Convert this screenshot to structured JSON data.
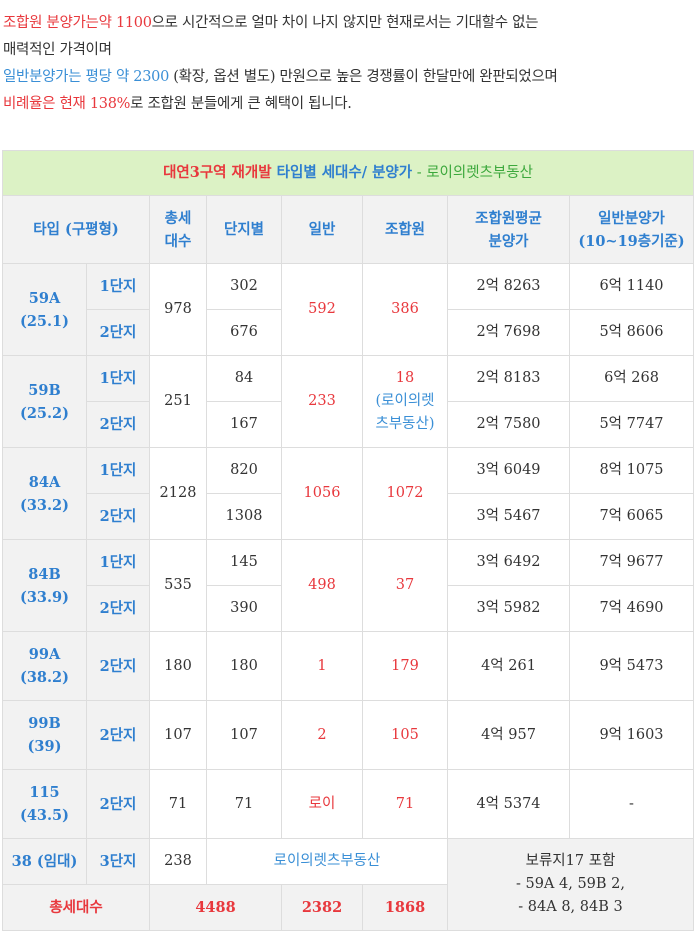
{
  "intro": {
    "line1_red": "조합원 분양가는약 1100",
    "line1_rest": "으로 시간적으로 얼마 차이 나지 않지만 현재로서는 기대할수 없는",
    "line2": "매력적인 가격이며",
    "line3_blue": "일반분양가는 평당 약 2300",
    "line3_rest": " (확장, 옵션 별도) 만원으로 높은 경쟁률이 한달만에 완판되었으며",
    "line4_red": "비례율은 현재 138%",
    "line4_rest": "로 조합원 분들에게 큰 혜택이 됩니다."
  },
  "table": {
    "title_red": "대연3구역 재개발 ",
    "title_blue": "타입별 세대수/ 분양가",
    "title_green": " - 로이의렛츠부동산",
    "headers": {
      "type": "타입 (구평형)",
      "total_units_1": "총세",
      "total_units_2": "대수",
      "by_complex": "단지별",
      "general": "일반",
      "member": "조합원",
      "member_avg_1": "조합원평균",
      "member_avg_2": "분양가",
      "general_price_1": "일반분양가",
      "general_price_2": "(10~19층기준)"
    },
    "rows": [
      {
        "type": "59A",
        "pyeong": "(25.1)",
        "total": "978",
        "general": "592",
        "member": "386",
        "sub": [
          {
            "complex": "1단지",
            "units": "302",
            "member_price": "2억 8263",
            "general_price": "6억 1140"
          },
          {
            "complex": "2단지",
            "units": "676",
            "member_price": "2억 7698",
            "general_price": "5억 8606"
          }
        ]
      },
      {
        "type": "59B",
        "pyeong": "(25.2)",
        "total": "251",
        "general": "233",
        "member_1": "18",
        "member_2": "(로이의렛",
        "member_3": "츠부동산)",
        "sub": [
          {
            "complex": "1단지",
            "units": "84",
            "member_price": "2억 8183",
            "general_price": "6억 268"
          },
          {
            "complex": "2단지",
            "units": "167",
            "member_price": "2억 7580",
            "general_price": "5억 7747"
          }
        ]
      },
      {
        "type": "84A",
        "pyeong": "(33.2)",
        "total": "2128",
        "general": "1056",
        "member": "1072",
        "sub": [
          {
            "complex": "1단지",
            "units": "820",
            "member_price": "3억 6049",
            "general_price": "8억 1075"
          },
          {
            "complex": "2단지",
            "units": "1308",
            "member_price": "3억 5467",
            "general_price": "7억 6065"
          }
        ]
      },
      {
        "type": "84B",
        "pyeong": "(33.9)",
        "total": "535",
        "general": "498",
        "member": "37",
        "sub": [
          {
            "complex": "1단지",
            "units": "145",
            "member_price": "3억 6492",
            "general_price": "7억 9677"
          },
          {
            "complex": "2단지",
            "units": "390",
            "member_price": "3억 5982",
            "general_price": "7억 4690"
          }
        ]
      },
      {
        "type": "99A",
        "pyeong": "(38.2)",
        "complex": "2단지",
        "total": "180",
        "units": "180",
        "general": "1",
        "member": "179",
        "member_price": "4억 261",
        "general_price": "9억 5473"
      },
      {
        "type": "99B",
        "pyeong": "(39)",
        "complex": "2단지",
        "total": "107",
        "units": "107",
        "general": "2",
        "member": "105",
        "member_price": "4억 957",
        "general_price": "9억 1603"
      },
      {
        "type": "115",
        "pyeong": "(43.5)",
        "complex": "2단지",
        "total": "71",
        "units": "71",
        "general": "로이",
        "member": "71",
        "member_price": "4억 5374",
        "general_price": "-"
      }
    ],
    "rental": {
      "type": "38 (임대)",
      "complex": "3단지",
      "total": "238",
      "watermark": "로이의렛츠부동산"
    },
    "note": {
      "line1": "보류지17 포함",
      "line2": "- 59A 4, 59B 2,",
      "line3": "- 84A 8, 84B 3"
    },
    "totals": {
      "label": "총세대수",
      "total": "4488",
      "general": "2382",
      "member": "1868"
    }
  }
}
